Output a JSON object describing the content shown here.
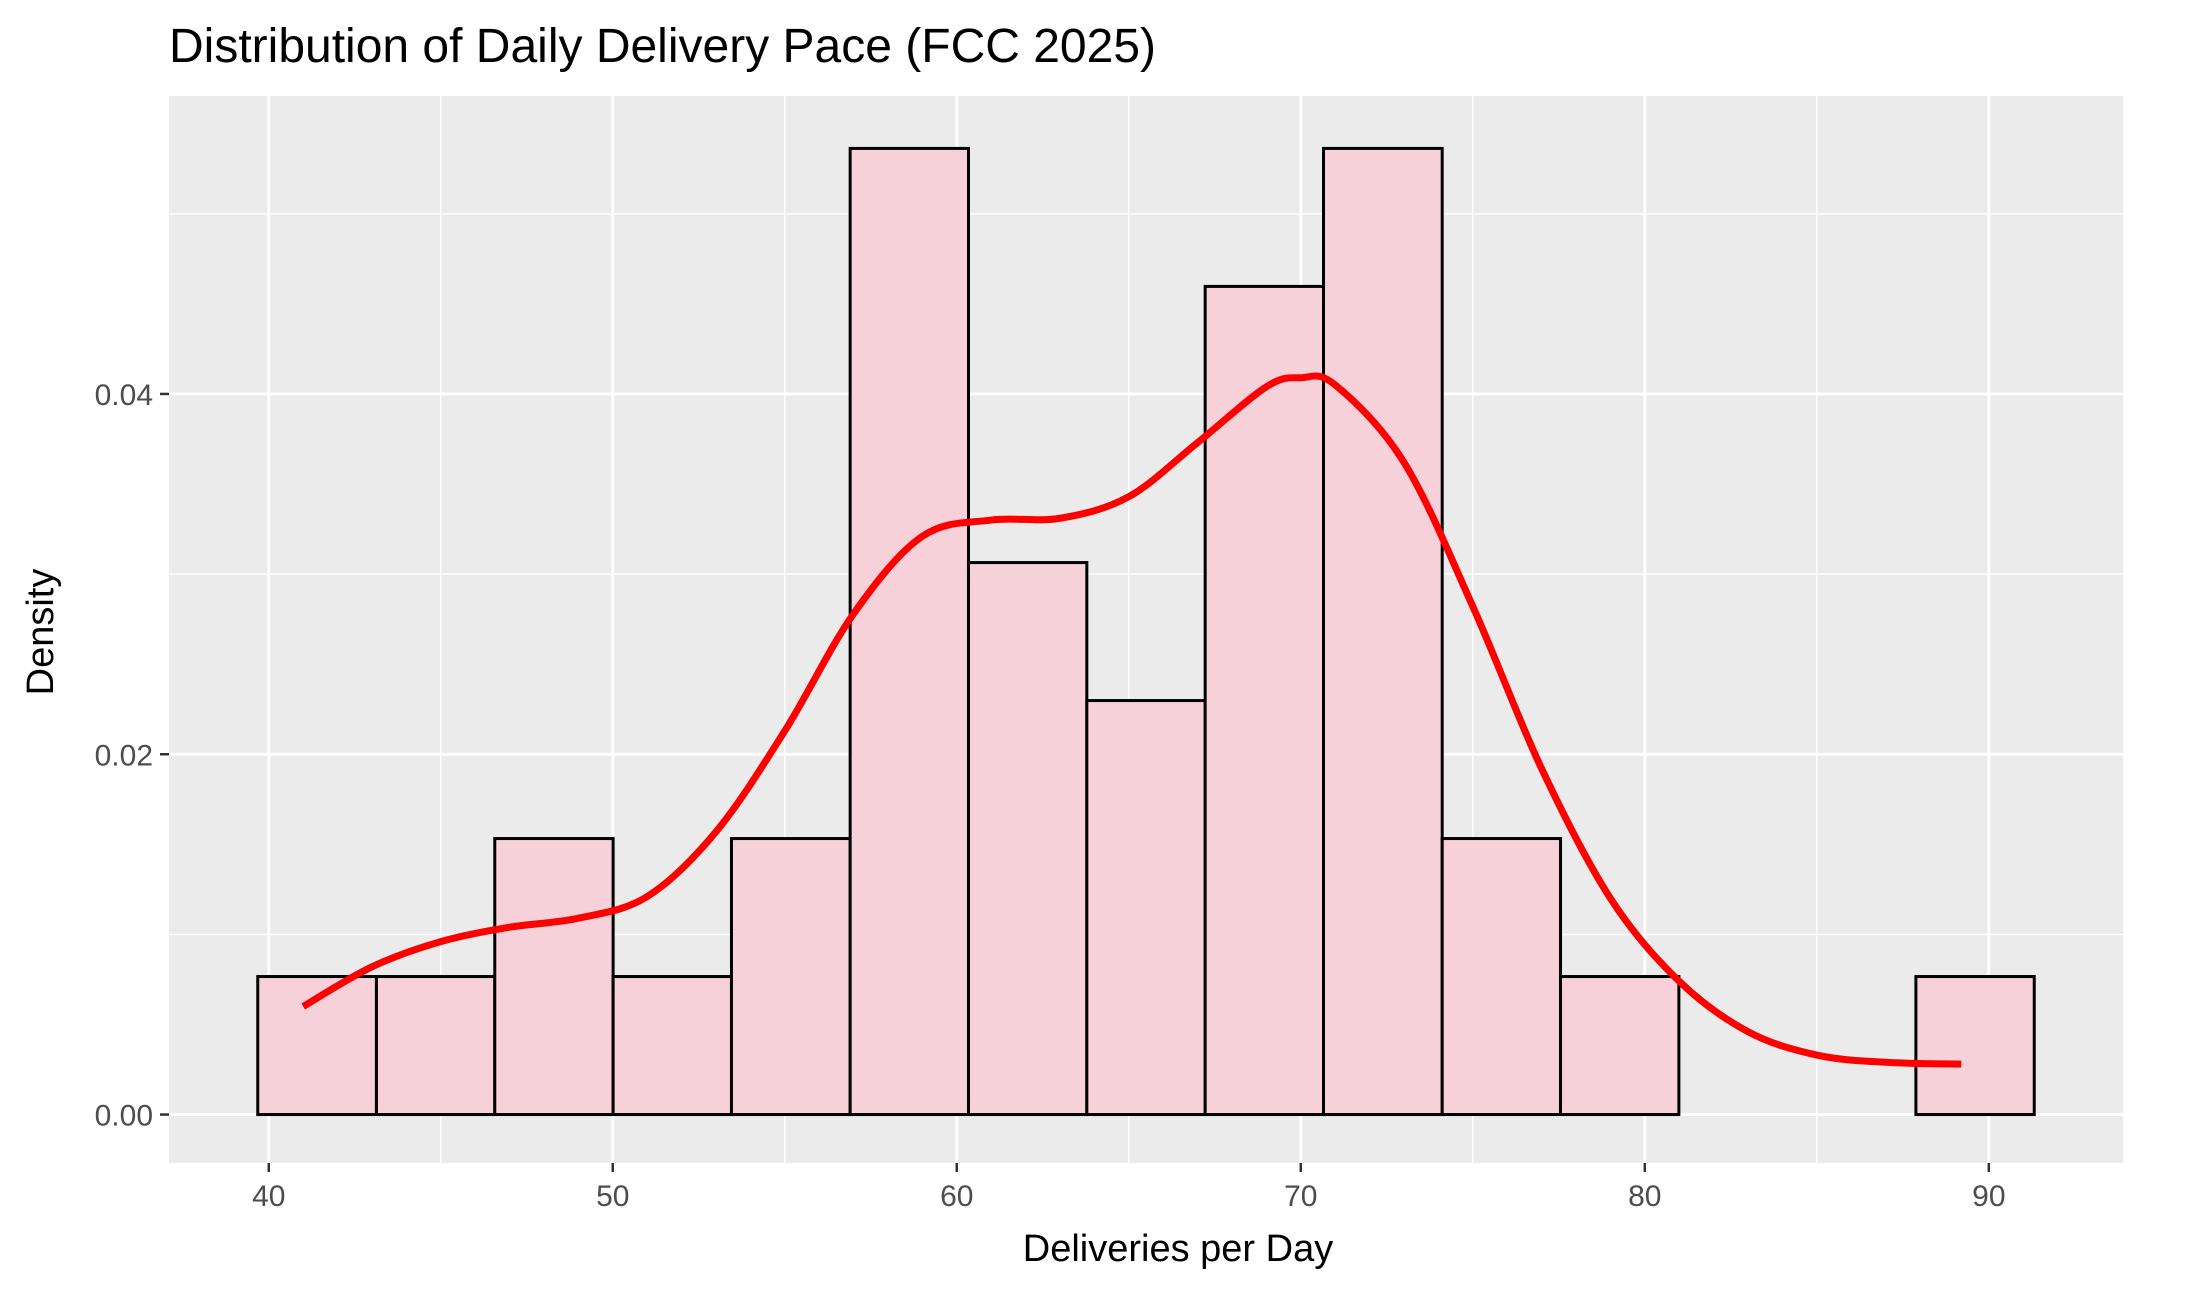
{
  "chart_data": {
    "type": "histogram",
    "title": "Distribution of Daily Delivery Pace (FCC 2025)",
    "xlabel": "Deliveries per Day",
    "ylabel": "Density",
    "xlim": [
      37.1,
      93.9
    ],
    "ylim": [
      -0.00269,
      0.05654
    ],
    "x_ticks": [
      40,
      50,
      60,
      70,
      80,
      90
    ],
    "x_tick_labels": [
      "40",
      "50",
      "60",
      "70",
      "80",
      "90"
    ],
    "y_ticks": [
      0.0,
      0.02,
      0.04
    ],
    "y_tick_labels": [
      "0.00",
      "0.02",
      "0.04"
    ],
    "grid": true,
    "legend": "none",
    "bins": [
      {
        "x0": 39.68,
        "x1": 43.13,
        "density": 0.00766
      },
      {
        "x0": 43.13,
        "x1": 46.57,
        "density": 0.00766
      },
      {
        "x0": 46.57,
        "x1": 50.01,
        "density": 0.01532
      },
      {
        "x0": 50.01,
        "x1": 53.45,
        "density": 0.00766
      },
      {
        "x0": 53.45,
        "x1": 56.9,
        "density": 0.01532
      },
      {
        "x0": 56.9,
        "x1": 60.34,
        "density": 0.05363
      },
      {
        "x0": 60.34,
        "x1": 63.78,
        "density": 0.03064
      },
      {
        "x0": 63.78,
        "x1": 67.22,
        "density": 0.02298
      },
      {
        "x0": 67.22,
        "x1": 70.66,
        "density": 0.04597
      },
      {
        "x0": 70.66,
        "x1": 74.11,
        "density": 0.05363
      },
      {
        "x0": 74.11,
        "x1": 77.55,
        "density": 0.01532
      },
      {
        "x0": 77.55,
        "x1": 80.99,
        "density": 0.00766
      },
      {
        "x0": 80.99,
        "x1": 84.43,
        "density": 0.0
      },
      {
        "x0": 84.43,
        "x1": 87.88,
        "density": 0.0
      },
      {
        "x0": 87.88,
        "x1": 91.32,
        "density": 0.00766
      }
    ],
    "density_curve": {
      "x": [
        41.0,
        43.0,
        45.0,
        47.0,
        49.0,
        51.0,
        53.0,
        55.0,
        57.0,
        59.0,
        61.0,
        63.0,
        65.0,
        67.0,
        69.0,
        70.0,
        71.0,
        73.0,
        75.0,
        77.0,
        79.0,
        81.0,
        83.0,
        85.0,
        87.0,
        89.2
      ],
      "y": [
        0.006,
        0.0082,
        0.0096,
        0.0104,
        0.0109,
        0.0121,
        0.0157,
        0.0213,
        0.0278,
        0.0321,
        0.033,
        0.0331,
        0.0343,
        0.0373,
        0.0404,
        0.0409,
        0.0405,
        0.0362,
        0.0282,
        0.0192,
        0.012,
        0.0074,
        0.0046,
        0.0033,
        0.0029,
        0.0028
      ]
    },
    "colors": {
      "panel_background": "#ebebeb",
      "grid_major": "#ffffff",
      "bar_fill": "#f7d1da",
      "bar_outline": "#000000",
      "curve": "#ff0000",
      "tick_label": "#4d4d4d",
      "tick_mark": "#333333"
    }
  }
}
